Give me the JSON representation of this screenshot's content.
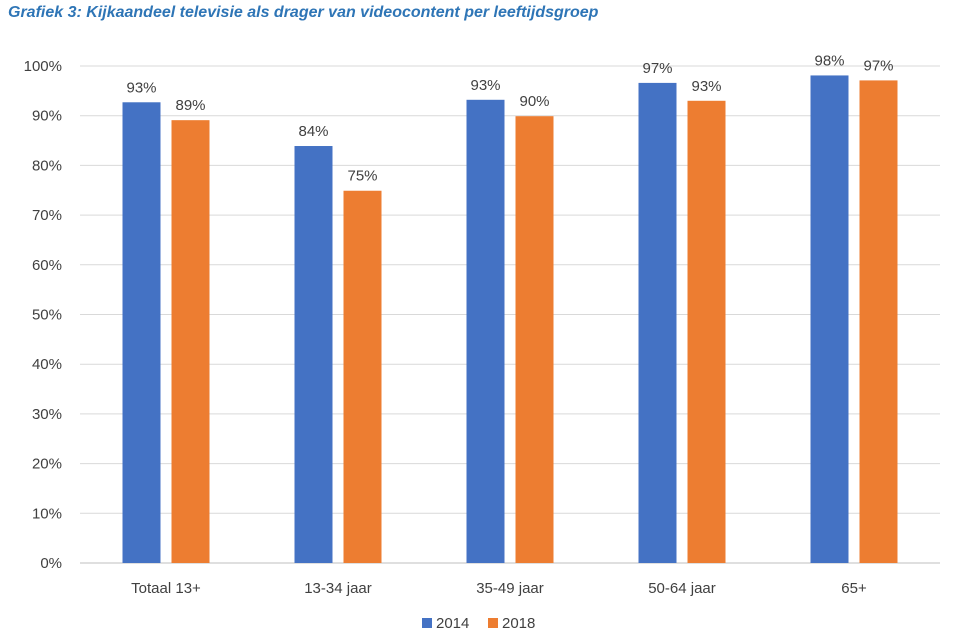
{
  "chart_data": {
    "type": "bar",
    "title": "Grafiek  3: Kijkaandeel televisie als drager van videocontent per leeftijdsgroep",
    "categories": [
      "Totaal 13+",
      "13-34 jaar",
      "35-49 jaar",
      "50-64 jaar",
      "65+"
    ],
    "series": [
      {
        "name": "2014",
        "color": "#4472c4",
        "values": [
          92.7,
          83.9,
          93.2,
          96.6,
          98.1
        ],
        "labels": [
          "93%",
          "84%",
          "93%",
          "97%",
          "98%"
        ]
      },
      {
        "name": "2018",
        "color": "#ed7d31",
        "values": [
          89.1,
          74.9,
          89.9,
          93.0,
          97.1
        ],
        "labels": [
          "89%",
          "75%",
          "90%",
          "93%",
          "97%"
        ]
      }
    ],
    "ylim": [
      0,
      100
    ],
    "yticks": [
      "0%",
      "10%",
      "20%",
      "30%",
      "40%",
      "50%",
      "60%",
      "70%",
      "80%",
      "90%",
      "100%"
    ],
    "xlabel": "",
    "ylabel": "",
    "grid": true,
    "legend": "bottom-center"
  }
}
